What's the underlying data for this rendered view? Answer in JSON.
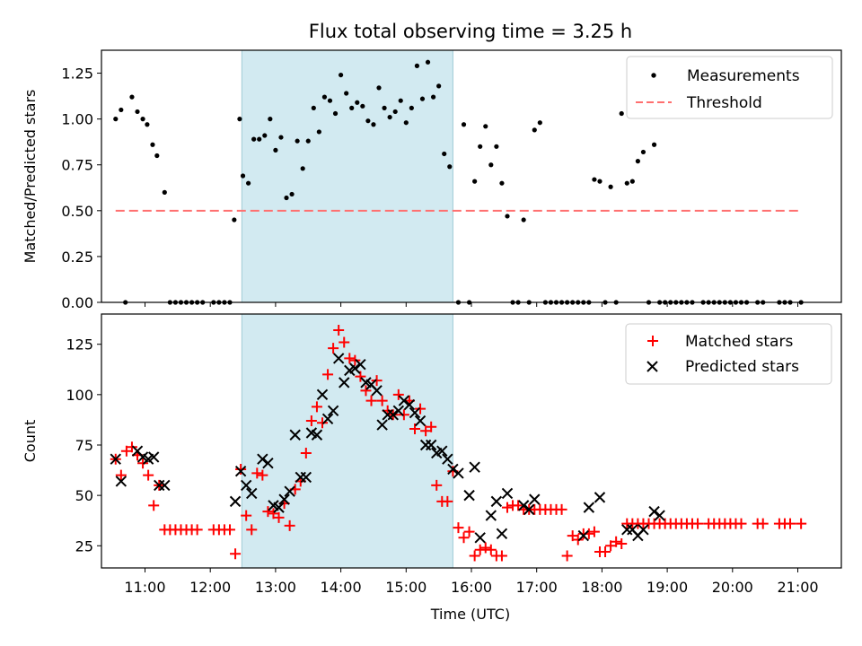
{
  "title": "Flux total observing time = 3.25 h",
  "xlabel": "Time (UTC)",
  "x_ticks": [
    "11:00",
    "12:00",
    "13:00",
    "14:00",
    "15:00",
    "16:00",
    "17:00",
    "18:00",
    "19:00",
    "20:00",
    "21:00"
  ],
  "highlight_window": {
    "start": "12:29",
    "end": "15:43",
    "color": "#add8e6"
  },
  "chart_data": [
    {
      "type": "scatter",
      "ylabel": "Matched/Predicted stars",
      "ylim": [
        0,
        1.375
      ],
      "yticks": [
        "0.00",
        "0.25",
        "0.50",
        "0.75",
        "1.00",
        "1.25"
      ],
      "legend_position": "top-right",
      "series": [
        {
          "name": "Measurements",
          "marker": "dot",
          "color": "#000000",
          "x": [
            "10:33",
            "10:38",
            "10:42",
            "10:48",
            "10:53",
            "10:58",
            "11:02",
            "11:07",
            "11:11",
            "11:18",
            "11:23",
            "11:28",
            "11:33",
            "11:38",
            "11:43",
            "11:48",
            "11:53",
            "12:03",
            "12:08",
            "12:13",
            "12:18",
            "12:22",
            "12:27",
            "12:30",
            "12:35",
            "12:40",
            "12:45",
            "12:50",
            "12:55",
            "13:00",
            "13:05",
            "13:10",
            "13:15",
            "13:20",
            "13:25",
            "13:30",
            "13:35",
            "13:40",
            "13:45",
            "13:50",
            "13:55",
            "14:00",
            "14:05",
            "14:10",
            "14:15",
            "14:20",
            "14:25",
            "14:30",
            "14:35",
            "14:40",
            "14:45",
            "14:50",
            "14:55",
            "15:00",
            "15:05",
            "15:10",
            "15:15",
            "15:20",
            "15:25",
            "15:30",
            "15:35",
            "15:40",
            "15:48",
            "15:53",
            "15:58",
            "16:03",
            "16:08",
            "16:13",
            "16:18",
            "16:23",
            "16:28",
            "16:33",
            "16:38",
            "16:43",
            "16:48",
            "16:53",
            "16:58",
            "17:03",
            "17:08",
            "17:13",
            "17:18",
            "17:23",
            "17:28",
            "17:33",
            "17:38",
            "17:43",
            "17:48",
            "17:53",
            "17:58",
            "18:03",
            "18:08",
            "18:13",
            "18:18",
            "18:23",
            "18:28",
            "18:33",
            "18:38",
            "18:43",
            "18:48",
            "18:53",
            "18:58",
            "19:03",
            "19:08",
            "19:13",
            "19:18",
            "19:23",
            "19:33",
            "19:38",
            "19:43",
            "19:48",
            "19:53",
            "19:58",
            "20:03",
            "20:08",
            "20:13",
            "20:23",
            "20:28",
            "20:43",
            "20:48",
            "20:53",
            "21:03"
          ],
          "y": [
            1.0,
            1.05,
            0.0,
            1.12,
            1.04,
            1.0,
            0.97,
            0.86,
            0.8,
            0.6,
            0.0,
            0.0,
            0.0,
            0.0,
            0.0,
            0.0,
            0.0,
            0.0,
            0.0,
            0.0,
            0.0,
            0.45,
            1.0,
            0.69,
            0.65,
            0.89,
            0.89,
            0.91,
            1.0,
            0.83,
            0.9,
            0.57,
            0.59,
            0.88,
            0.73,
            0.88,
            1.06,
            0.93,
            1.12,
            1.1,
            1.03,
            1.24,
            1.14,
            1.06,
            1.09,
            1.07,
            0.99,
            0.97,
            1.17,
            1.06,
            1.01,
            1.04,
            1.1,
            0.98,
            1.06,
            1.29,
            1.11,
            1.31,
            1.12,
            1.18,
            0.81,
            0.74,
            0.0,
            0.97,
            0.0,
            0.66,
            0.85,
            0.96,
            0.75,
            0.85,
            0.65,
            0.47,
            0.0,
            0.0,
            0.45,
            0.0,
            0.94,
            0.98,
            0.0,
            0.0,
            0.0,
            0.0,
            0.0,
            0.0,
            0.0,
            0.0,
            0.0,
            0.67,
            0.66,
            0.0,
            0.63,
            0.0,
            1.03,
            0.65,
            0.66,
            0.77,
            0.82,
            0.0,
            0.86,
            0.0,
            0.0,
            0.0,
            0.0,
            0.0,
            0.0,
            0.0,
            0.0,
            0.0,
            0.0,
            0.0,
            0.0,
            0.0,
            0.0,
            0.0,
            0.0,
            0.0,
            0.0,
            0.0,
            0.0,
            0.0,
            0.0
          ]
        },
        {
          "name": "Threshold",
          "marker": "dashed-line",
          "color": "#ff6f6f",
          "x": [
            "10:33",
            "21:03"
          ],
          "y": [
            0.5,
            0.5
          ]
        }
      ]
    },
    {
      "type": "scatter",
      "ylabel": "Count",
      "ylim": [
        14,
        140
      ],
      "yticks": [
        "25",
        "50",
        "75",
        "100",
        "125"
      ],
      "legend_position": "top-right",
      "series": [
        {
          "name": "Matched stars",
          "marker": "plus",
          "color": "#ff0000",
          "x": [
            "10:33",
            "10:38",
            "10:43",
            "10:48",
            "10:53",
            "10:58",
            "11:03",
            "11:08",
            "11:13",
            "11:18",
            "11:23",
            "11:28",
            "11:33",
            "11:38",
            "11:43",
            "11:48",
            "12:03",
            "12:08",
            "12:13",
            "12:18",
            "12:23",
            "12:28",
            "12:33",
            "12:38",
            "12:43",
            "12:48",
            "12:53",
            "12:58",
            "13:03",
            "13:08",
            "13:13",
            "13:18",
            "13:23",
            "13:28",
            "13:33",
            "13:38",
            "13:43",
            "13:48",
            "13:53",
            "13:58",
            "14:03",
            "14:08",
            "14:13",
            "14:18",
            "14:23",
            "14:28",
            "14:33",
            "14:38",
            "14:43",
            "14:48",
            "14:53",
            "14:58",
            "15:03",
            "15:08",
            "15:13",
            "15:18",
            "15:23",
            "15:28",
            "15:33",
            "15:38",
            "15:43",
            "15:48",
            "15:53",
            "15:58",
            "16:03",
            "16:08",
            "16:13",
            "16:18",
            "16:23",
            "16:28",
            "16:33",
            "16:38",
            "16:43",
            "16:48",
            "16:53",
            "16:58",
            "17:03",
            "17:08",
            "17:13",
            "17:18",
            "17:23",
            "17:28",
            "17:33",
            "17:38",
            "17:43",
            "17:48",
            "17:53",
            "17:58",
            "18:03",
            "18:08",
            "18:13",
            "18:18",
            "18:23",
            "18:28",
            "18:33",
            "18:38",
            "18:43",
            "18:48",
            "18:53",
            "18:58",
            "19:03",
            "19:08",
            "19:13",
            "19:18",
            "19:23",
            "19:28",
            "19:38",
            "19:43",
            "19:48",
            "19:53",
            "19:58",
            "20:03",
            "20:08",
            "20:23",
            "20:28",
            "20:43",
            "20:48",
            "20:53",
            "21:03"
          ],
          "y": [
            68,
            60,
            72,
            74,
            70,
            66,
            60,
            45,
            55,
            33,
            33,
            33,
            33,
            33,
            33,
            33,
            33,
            33,
            33,
            33,
            21,
            63,
            40,
            33,
            61,
            60,
            42,
            41,
            39,
            46,
            35,
            53,
            57,
            71,
            87,
            94,
            86,
            110,
            123,
            132,
            126,
            118,
            117,
            109,
            102,
            97,
            107,
            97,
            92,
            90,
            100,
            90,
            97,
            83,
            93,
            82,
            84,
            55,
            47,
            47,
            62,
            34,
            29,
            32,
            20,
            23,
            24,
            23,
            20,
            20,
            44,
            45,
            45,
            43,
            43,
            43,
            43,
            43,
            43,
            43,
            43,
            20,
            30,
            28,
            31,
            31,
            32,
            22,
            22,
            25,
            27,
            26,
            36,
            36,
            36,
            36,
            36,
            36,
            36,
            36,
            36,
            36,
            36,
            36,
            36,
            36,
            36,
            36,
            36,
            36,
            36,
            36,
            36,
            36,
            36,
            36,
            36,
            36,
            36
          ]
        },
        {
          "name": "Predicted stars",
          "marker": "x",
          "color": "#000000",
          "x": [
            "10:33",
            "10:38",
            "10:53",
            "10:58",
            "11:03",
            "11:08",
            "11:13",
            "11:18",
            "12:23",
            "12:28",
            "12:33",
            "12:38",
            "12:48",
            "12:53",
            "12:58",
            "13:03",
            "13:08",
            "13:13",
            "13:18",
            "13:23",
            "13:28",
            "13:33",
            "13:38",
            "13:43",
            "13:48",
            "13:53",
            "13:58",
            "14:03",
            "14:08",
            "14:13",
            "14:18",
            "14:23",
            "14:28",
            "14:33",
            "14:38",
            "14:43",
            "14:48",
            "14:53",
            "14:58",
            "15:03",
            "15:08",
            "15:13",
            "15:18",
            "15:23",
            "15:28",
            "15:33",
            "15:38",
            "15:43",
            "15:48",
            "15:58",
            "16:03",
            "16:08",
            "16:18",
            "16:23",
            "16:28",
            "16:33",
            "16:48",
            "16:53",
            "16:58",
            "17:43",
            "17:48",
            "17:58",
            "18:23",
            "18:28",
            "18:33",
            "18:38",
            "18:48",
            "18:53"
          ],
          "y": [
            68,
            57,
            72,
            69,
            68,
            69,
            55,
            55,
            47,
            62,
            55,
            51,
            68,
            66,
            45,
            44,
            48,
            52,
            80,
            59,
            59,
            81,
            80,
            100,
            88,
            92,
            118,
            106,
            112,
            113,
            115,
            106,
            105,
            102,
            85,
            90,
            90,
            92,
            97,
            95,
            91,
            87,
            75,
            75,
            71,
            72,
            68,
            63,
            61,
            50,
            64,
            29,
            40,
            47,
            31,
            51,
            45,
            43,
            48,
            30,
            44,
            49,
            33,
            33,
            30,
            33,
            42,
            40
          ]
        }
      ]
    }
  ]
}
